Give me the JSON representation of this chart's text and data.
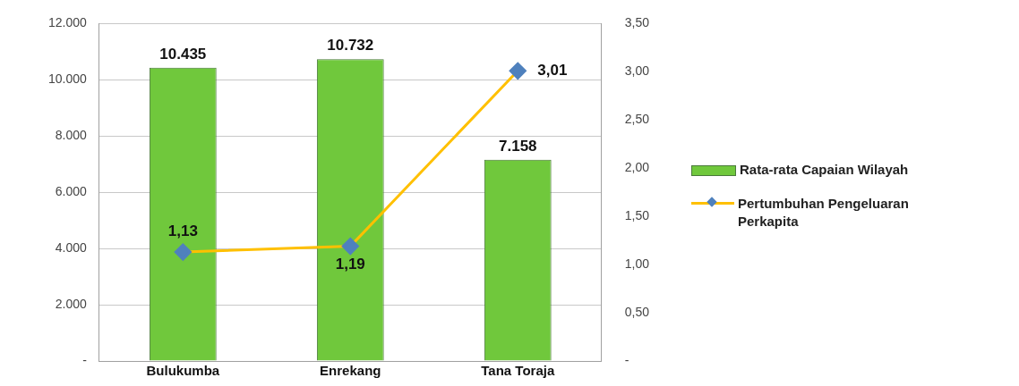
{
  "chart_data": {
    "type": "bar",
    "categories": [
      "Bulukumba",
      "Enrekang",
      "Tana Toraja"
    ],
    "series": [
      {
        "name": "Rata-rata Capaian Wilayah",
        "color": "#70c83c",
        "values": [
          10435,
          10732,
          7158
        ],
        "value_labels": [
          "10.435",
          "10.732",
          "7.158"
        ]
      },
      {
        "name": "Pertumbuhan Pengeluaran Perkapita",
        "type": "line",
        "axis": "y2",
        "color": "#ffc000",
        "colors": [
          "#4f81bd",
          "#4f81bd",
          "#4f81bd"
        ],
        "marker": "diamond",
        "values": [
          1.13,
          1.19,
          3.01
        ],
        "value_labels": [
          "1,13",
          "1,19",
          "3,01"
        ]
      }
    ],
    "ylim": [
      0,
      12000
    ],
    "yticks": [
      {
        "value": 0,
        "label": "-"
      },
      {
        "value": 2000,
        "label": "2.000"
      },
      {
        "value": 4000,
        "label": "4.000"
      },
      {
        "value": 6000,
        "label": "6.000"
      },
      {
        "value": 8000,
        "label": "8.000"
      },
      {
        "value": 10000,
        "label": "10.000"
      },
      {
        "value": 12000,
        "label": "12.000"
      }
    ],
    "y2lim": [
      0,
      3.5
    ],
    "y2ticks": [
      {
        "value": 0,
        "label": "-"
      },
      {
        "value": 0.5,
        "label": "0,50"
      },
      {
        "value": 1,
        "label": "1,00"
      },
      {
        "value": 1.5,
        "label": "1,50"
      },
      {
        "value": 2,
        "label": "2,00"
      },
      {
        "value": 2.5,
        "label": "2,50"
      },
      {
        "value": 3,
        "label": "3,00"
      },
      {
        "value": 3.5,
        "label": "3,50"
      }
    ],
    "grid": "y",
    "legend": "right"
  }
}
